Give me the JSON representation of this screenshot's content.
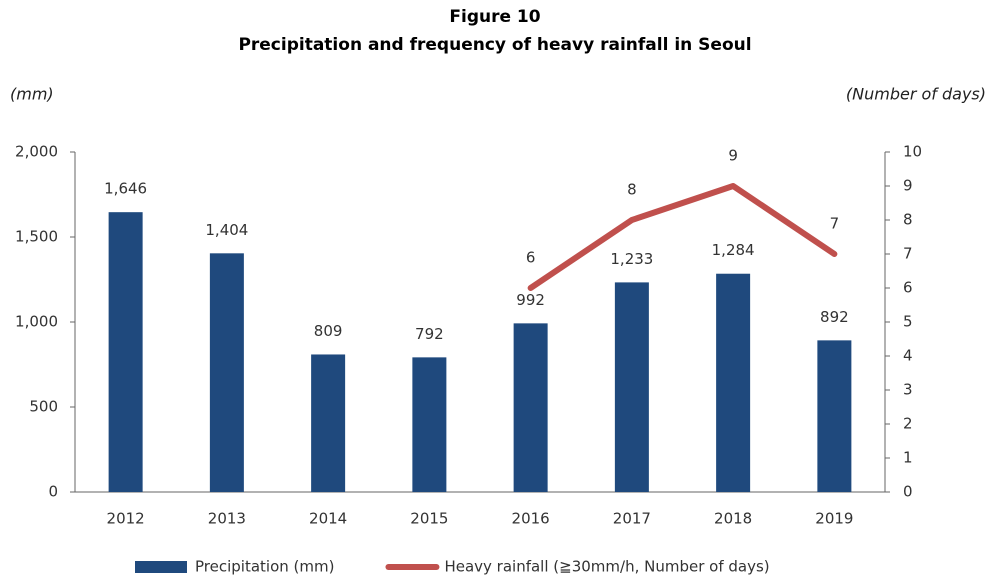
{
  "chart_data": {
    "type": "bar",
    "title": "Figure 10",
    "subtitle": "Precipitation and frequency of heavy rainfall in Seoul",
    "y_label": "(mm)",
    "y2_label": "(Number of days)",
    "categories": [
      "2012",
      "2013",
      "2014",
      "2015",
      "2016",
      "2017",
      "2018",
      "2019"
    ],
    "series": [
      {
        "name": "Precipitation (mm)",
        "type": "bar",
        "color": "#1f497d",
        "values": [
          1646,
          1404,
          809,
          792,
          992,
          1233,
          1284,
          892
        ],
        "value_labels": [
          "1,646",
          "1,404",
          "809",
          "792",
          "992",
          "1,233",
          "1,284",
          "892"
        ]
      },
      {
        "name": "Heavy rainfall (≧30mm/h, Number of days)",
        "type": "line",
        "axis": "y2",
        "color": "#c0504d",
        "values": [
          null,
          null,
          null,
          null,
          6,
          8,
          9,
          7
        ]
      }
    ],
    "ylim": [
      0,
      2000
    ],
    "yticks": [
      0,
      500,
      {
        "value": 1000,
        "label": "1,000"
      },
      {
        "value": 1500,
        "label": "1,500"
      },
      {
        "value": 2000,
        "label": "2,000"
      }
    ],
    "y2lim": [
      0,
      10
    ],
    "y2ticks": [
      0,
      1,
      2,
      3,
      4,
      5,
      6,
      7,
      8,
      9,
      10
    ],
    "legend": "bottom"
  }
}
